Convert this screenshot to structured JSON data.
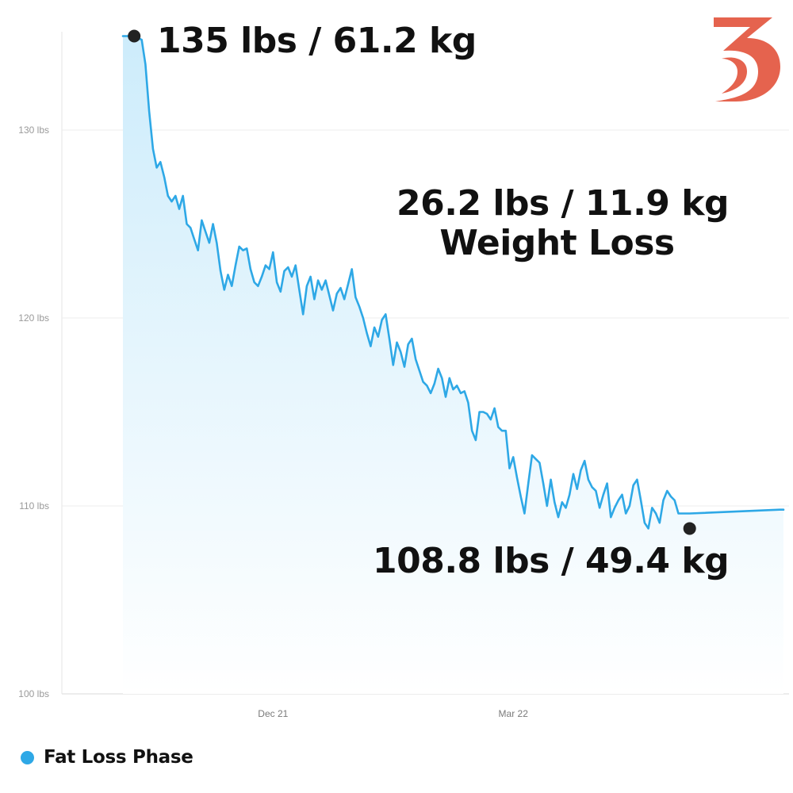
{
  "chart_data": {
    "type": "area",
    "title": "",
    "xlabel": "",
    "ylabel": "",
    "ylim": [
      100,
      136
    ],
    "y_ticks": [
      100,
      110,
      120,
      130
    ],
    "y_tick_labels": [
      "100 lbs",
      "110 lbs",
      "120 lbs",
      "130 lbs"
    ],
    "x_tick_labels": [
      "Dec 21",
      "Mar 22"
    ],
    "grid": true,
    "legend_position": "bottom-left",
    "series": [
      {
        "name": "Fat Loss Phase",
        "color": "#2ea8e6",
        "fill_color": "#d6f0fc",
        "points": [
          [
            0,
            135
          ],
          [
            3,
            135
          ],
          [
            5,
            134.8
          ],
          [
            6,
            133.5
          ],
          [
            7,
            131
          ],
          [
            8,
            129
          ],
          [
            9,
            128
          ],
          [
            10,
            128.3
          ],
          [
            11,
            127.5
          ],
          [
            12,
            126.5
          ],
          [
            13,
            126.2
          ],
          [
            14,
            126.5
          ],
          [
            15,
            125.8
          ],
          [
            16,
            126.5
          ],
          [
            17,
            125
          ],
          [
            18,
            124.8
          ],
          [
            19,
            124.2
          ],
          [
            20,
            123.6
          ],
          [
            21,
            125.2
          ],
          [
            22,
            124.6
          ],
          [
            23,
            124
          ],
          [
            24,
            125
          ],
          [
            25,
            124
          ],
          [
            26,
            122.5
          ],
          [
            27,
            121.5
          ],
          [
            28,
            122.3
          ],
          [
            29,
            121.7
          ],
          [
            30,
            122.8
          ],
          [
            31,
            123.8
          ],
          [
            32,
            123.6
          ],
          [
            33,
            123.7
          ],
          [
            34,
            122.6
          ],
          [
            35,
            121.9
          ],
          [
            36,
            121.7
          ],
          [
            37,
            122.2
          ],
          [
            38,
            122.8
          ],
          [
            39,
            122.6
          ],
          [
            40,
            123.5
          ],
          [
            41,
            121.9
          ],
          [
            42,
            121.4
          ],
          [
            43,
            122.5
          ],
          [
            44,
            122.7
          ],
          [
            45,
            122.2
          ],
          [
            46,
            122.8
          ],
          [
            47,
            121.5
          ],
          [
            48,
            120.2
          ],
          [
            49,
            121.7
          ],
          [
            50,
            122.2
          ],
          [
            51,
            121
          ],
          [
            52,
            122
          ],
          [
            53,
            121.5
          ],
          [
            54,
            122
          ],
          [
            55,
            121.2
          ],
          [
            56,
            120.4
          ],
          [
            57,
            121.3
          ],
          [
            58,
            121.6
          ],
          [
            59,
            121
          ],
          [
            60,
            121.8
          ],
          [
            61,
            122.6
          ],
          [
            62,
            121.1
          ],
          [
            63,
            120.6
          ],
          [
            64,
            120
          ],
          [
            65,
            119.2
          ],
          [
            66,
            118.5
          ],
          [
            67,
            119.5
          ],
          [
            68,
            119
          ],
          [
            69,
            119.9
          ],
          [
            70,
            120.2
          ],
          [
            71,
            118.9
          ],
          [
            72,
            117.5
          ],
          [
            73,
            118.7
          ],
          [
            74,
            118.2
          ],
          [
            75,
            117.4
          ],
          [
            76,
            118.6
          ],
          [
            77,
            118.9
          ],
          [
            78,
            117.8
          ],
          [
            79,
            117.2
          ],
          [
            80,
            116.6
          ],
          [
            81,
            116.4
          ],
          [
            82,
            116
          ],
          [
            83,
            116.5
          ],
          [
            84,
            117.3
          ],
          [
            85,
            116.8
          ],
          [
            86,
            115.8
          ],
          [
            87,
            116.8
          ],
          [
            88,
            116.2
          ],
          [
            89,
            116.4
          ],
          [
            90,
            116
          ],
          [
            91,
            116.1
          ],
          [
            92,
            115.5
          ],
          [
            93,
            114
          ],
          [
            94,
            113.5
          ],
          [
            95,
            115
          ],
          [
            96,
            115
          ],
          [
            97,
            114.9
          ],
          [
            98,
            114.6
          ],
          [
            99,
            115.2
          ],
          [
            100,
            114.2
          ],
          [
            101,
            114
          ],
          [
            102,
            114
          ],
          [
            103,
            112
          ],
          [
            104,
            112.6
          ],
          [
            105,
            111.5
          ],
          [
            106,
            110.5
          ],
          [
            107,
            109.6
          ],
          [
            108,
            111.2
          ],
          [
            109,
            112.7
          ],
          [
            110,
            112.5
          ],
          [
            111,
            112.3
          ],
          [
            112,
            111.2
          ],
          [
            113,
            110
          ],
          [
            114,
            111.4
          ],
          [
            115,
            110.2
          ],
          [
            116,
            109.4
          ],
          [
            117,
            110.2
          ],
          [
            118,
            109.9
          ],
          [
            119,
            110.6
          ],
          [
            120,
            111.7
          ],
          [
            121,
            110.9
          ],
          [
            122,
            111.9
          ],
          [
            123,
            112.4
          ],
          [
            124,
            111.4
          ],
          [
            125,
            111
          ],
          [
            126,
            110.8
          ],
          [
            127,
            109.9
          ],
          [
            128,
            110.6
          ],
          [
            129,
            111.2
          ],
          [
            130,
            109.4
          ],
          [
            131,
            109.9
          ],
          [
            132,
            110.3
          ],
          [
            133,
            110.6
          ],
          [
            134,
            109.6
          ],
          [
            135,
            110
          ],
          [
            136,
            111.1
          ],
          [
            137,
            111.4
          ],
          [
            138,
            110.3
          ],
          [
            139,
            109.1
          ],
          [
            140,
            108.8
          ],
          [
            141,
            109.9
          ],
          [
            142,
            109.6
          ],
          [
            143,
            109.1
          ],
          [
            144,
            110.3
          ],
          [
            145,
            110.8
          ],
          [
            146,
            110.5
          ],
          [
            147,
            110.3
          ],
          [
            148,
            109.6
          ],
          [
            151,
            109.6
          ],
          [
            175,
            109.8
          ],
          [
            176,
            109.8
          ]
        ],
        "x_tick_positions": [
          40,
          104
        ]
      }
    ],
    "annotations": [
      {
        "text": "135 lbs / 61.2 kg",
        "x": 3,
        "y": 135
      },
      {
        "text": "108.8 lbs / 49.4 kg",
        "x": 151,
        "y": 108.8
      },
      {
        "text": "26.2 lbs / 11.9 kg",
        "line": 1
      },
      {
        "text": "Weight Loss",
        "line": 2
      }
    ],
    "marker_color": "#222222"
  },
  "labels": {
    "start": "135 lbs / 61.2 kg",
    "end": "108.8 lbs / 49.4 kg",
    "summary_line1": "26.2 lbs / 11.9 kg",
    "summary_line2": "Weight Loss",
    "legend": "Fat Loss Phase"
  },
  "logo": {
    "icon": "brand-s-logo-icon",
    "color": "#e5634e"
  }
}
